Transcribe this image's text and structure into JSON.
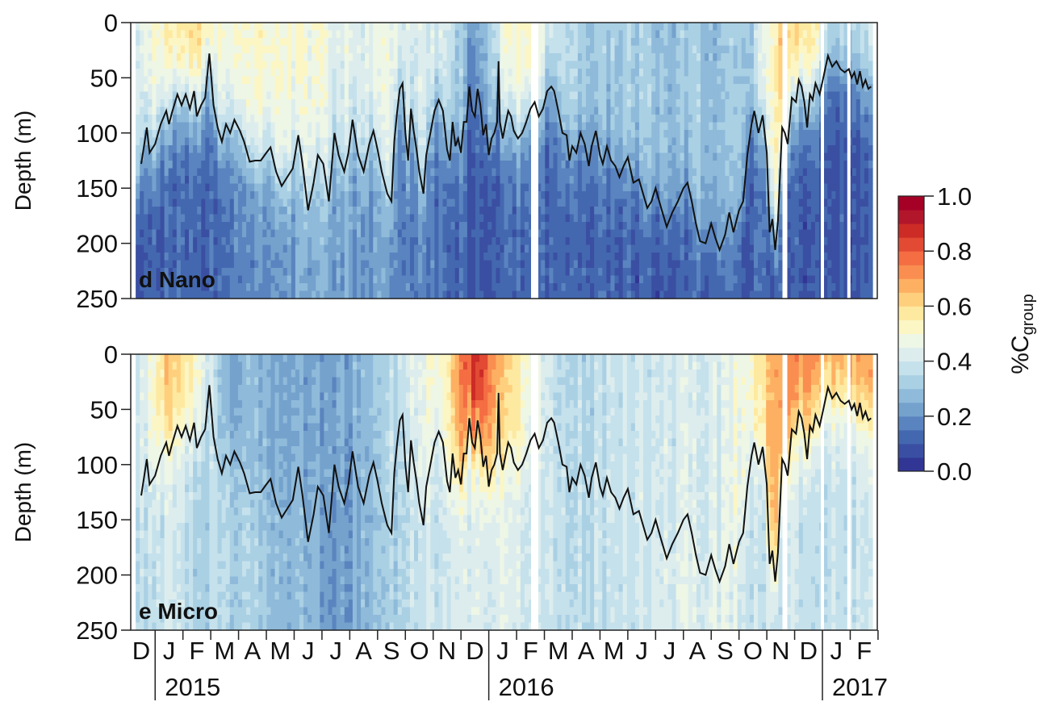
{
  "chart_data": [
    {
      "type": "heatmap",
      "panel_label": "d Nano",
      "ylabel": "Depth (m)",
      "ylim": [
        250,
        0
      ],
      "y_ticks": [
        0,
        50,
        100,
        150,
        200,
        250
      ],
      "x_month_labels": [
        "D",
        "J",
        "F",
        "M",
        "A",
        "M",
        "J",
        "J",
        "A",
        "S",
        "O",
        "N",
        "D",
        "J",
        "F",
        "M",
        "A",
        "M",
        "J",
        "J",
        "A",
        "S",
        "O",
        "N",
        "D",
        "J",
        "F"
      ],
      "x_year_labels": [
        "2015",
        "2016",
        "2017"
      ],
      "value_range": [
        0,
        1
      ],
      "gaps_month_index": [
        14.15,
        23.15,
        24.5,
        25.45
      ],
      "mixed_layer_depth_line": [
        [
          0.0,
          128
        ],
        [
          0.1,
          112
        ],
        [
          0.2,
          95
        ],
        [
          0.3,
          118
        ],
        [
          0.5,
          110
        ],
        [
          0.7,
          92
        ],
        [
          0.9,
          80
        ],
        [
          1.0,
          92
        ],
        [
          1.1,
          82
        ],
        [
          1.3,
          65
        ],
        [
          1.45,
          75
        ],
        [
          1.6,
          65
        ],
        [
          1.75,
          78
        ],
        [
          1.9,
          62
        ],
        [
          2.0,
          85
        ],
        [
          2.15,
          75
        ],
        [
          2.3,
          68
        ],
        [
          2.45,
          28
        ],
        [
          2.6,
          75
        ],
        [
          2.75,
          95
        ],
        [
          2.9,
          108
        ],
        [
          3.05,
          92
        ],
        [
          3.2,
          100
        ],
        [
          3.35,
          88
        ],
        [
          3.55,
          98
        ],
        [
          3.7,
          108
        ],
        [
          3.9,
          126
        ],
        [
          4.1,
          125
        ],
        [
          4.3,
          125
        ],
        [
          4.5,
          118
        ],
        [
          4.65,
          113
        ],
        [
          4.85,
          135
        ],
        [
          5.05,
          148
        ],
        [
          5.25,
          140
        ],
        [
          5.45,
          132
        ],
        [
          5.65,
          102
        ],
        [
          5.8,
          128
        ],
        [
          6.0,
          170
        ],
        [
          6.2,
          145
        ],
        [
          6.35,
          120
        ],
        [
          6.55,
          128
        ],
        [
          6.75,
          162
        ],
        [
          6.95,
          100
        ],
        [
          7.1,
          120
        ],
        [
          7.3,
          135
        ],
        [
          7.45,
          118
        ],
        [
          7.6,
          88
        ],
        [
          7.8,
          120
        ],
        [
          8.0,
          135
        ],
        [
          8.2,
          110
        ],
        [
          8.35,
          98
        ],
        [
          8.5,
          115
        ],
        [
          8.65,
          135
        ],
        [
          8.85,
          155
        ],
        [
          9.0,
          162
        ],
        [
          9.1,
          108
        ],
        [
          9.2,
          82
        ],
        [
          9.3,
          60
        ],
        [
          9.4,
          55
        ],
        [
          9.5,
          100
        ],
        [
          9.6,
          125
        ],
        [
          9.7,
          78
        ],
        [
          9.8,
          98
        ],
        [
          9.9,
          115
        ],
        [
          10.0,
          135
        ],
        [
          10.15,
          155
        ],
        [
          10.25,
          120
        ],
        [
          10.4,
          100
        ],
        [
          10.55,
          80
        ],
        [
          10.7,
          70
        ],
        [
          10.85,
          80
        ],
        [
          11.0,
          115
        ],
        [
          11.1,
          125
        ],
        [
          11.2,
          90
        ],
        [
          11.3,
          112
        ],
        [
          11.4,
          105
        ],
        [
          11.5,
          118
        ],
        [
          11.6,
          90
        ],
        [
          11.7,
          90
        ],
        [
          11.8,
          58
        ],
        [
          11.9,
          80
        ],
        [
          12.0,
          85
        ],
        [
          12.1,
          60
        ],
        [
          12.2,
          75
        ],
        [
          12.3,
          102
        ],
        [
          12.4,
          92
        ],
        [
          12.5,
          120
        ],
        [
          12.6,
          105
        ],
        [
          12.7,
          100
        ],
        [
          12.8,
          90
        ],
        [
          12.85,
          35
        ],
        [
          12.9,
          90
        ],
        [
          13.0,
          105
        ],
        [
          13.1,
          92
        ],
        [
          13.2,
          80
        ],
        [
          13.3,
          85
        ],
        [
          13.4,
          98
        ],
        [
          13.55,
          105
        ],
        [
          13.7,
          100
        ],
        [
          13.85,
          90
        ],
        [
          14.0,
          78
        ],
        [
          14.15,
          72
        ],
        [
          14.3,
          85
        ],
        [
          14.45,
          78
        ],
        [
          14.6,
          62
        ],
        [
          14.75,
          58
        ],
        [
          14.85,
          62
        ],
        [
          15.0,
          80
        ],
        [
          15.15,
          100
        ],
        [
          15.3,
          102
        ],
        [
          15.4,
          125
        ],
        [
          15.5,
          112
        ],
        [
          15.65,
          118
        ],
        [
          15.8,
          100
        ],
        [
          15.95,
          110
        ],
        [
          16.1,
          130
        ],
        [
          16.2,
          112
        ],
        [
          16.35,
          98
        ],
        [
          16.5,
          120
        ],
        [
          16.6,
          128
        ],
        [
          16.75,
          112
        ],
        [
          16.9,
          125
        ],
        [
          17.05,
          130
        ],
        [
          17.2,
          140
        ],
        [
          17.35,
          130
        ],
        [
          17.5,
          122
        ],
        [
          17.7,
          145
        ],
        [
          17.9,
          142
        ],
        [
          18.05,
          155
        ],
        [
          18.2,
          168
        ],
        [
          18.35,
          162
        ],
        [
          18.5,
          150
        ],
        [
          18.7,
          168
        ],
        [
          18.9,
          185
        ],
        [
          19.1,
          172
        ],
        [
          19.3,
          162
        ],
        [
          19.5,
          150
        ],
        [
          19.65,
          145
        ],
        [
          19.8,
          162
        ],
        [
          19.95,
          182
        ],
        [
          20.1,
          198
        ],
        [
          20.3,
          200
        ],
        [
          20.5,
          182
        ],
        [
          20.65,
          195
        ],
        [
          20.8,
          206
        ],
        [
          21.0,
          192
        ],
        [
          21.15,
          172
        ],
        [
          21.3,
          190
        ],
        [
          21.5,
          170
        ],
        [
          21.65,
          162
        ],
        [
          21.8,
          120
        ],
        [
          21.95,
          92
        ],
        [
          22.05,
          80
        ],
        [
          22.2,
          100
        ],
        [
          22.35,
          84
        ],
        [
          22.5,
          118
        ],
        [
          22.6,
          190
        ],
        [
          22.7,
          178
        ],
        [
          22.8,
          206
        ],
        [
          22.9,
          180
        ],
        [
          23.05,
          95
        ],
        [
          23.15,
          100
        ],
        [
          23.25,
          110
        ],
        [
          23.4,
          68
        ],
        [
          23.55,
          72
        ],
        [
          23.65,
          52
        ],
        [
          23.75,
          58
        ],
        [
          23.85,
          72
        ],
        [
          23.95,
          95
        ],
        [
          24.05,
          65
        ],
        [
          24.15,
          70
        ],
        [
          24.25,
          55
        ],
        [
          24.4,
          65
        ],
        [
          24.55,
          48
        ],
        [
          24.7,
          30
        ],
        [
          24.85,
          40
        ],
        [
          25.0,
          35
        ],
        [
          25.15,
          42
        ],
        [
          25.3,
          45
        ],
        [
          25.45,
          42
        ],
        [
          25.55,
          50
        ],
        [
          25.65,
          45
        ],
        [
          25.75,
          56
        ],
        [
          25.85,
          44
        ],
        [
          25.95,
          58
        ],
        [
          26.05,
          52
        ],
        [
          26.15,
          60
        ],
        [
          26.25,
          58
        ]
      ]
    },
    {
      "type": "heatmap",
      "panel_label": "e Micro",
      "ylabel": "Depth (m)",
      "ylim": [
        250,
        0
      ],
      "y_ticks": [
        0,
        50,
        100,
        150,
        200,
        250
      ],
      "x_month_labels": [
        "D",
        "J",
        "F",
        "M",
        "A",
        "M",
        "J",
        "J",
        "A",
        "S",
        "O",
        "N",
        "D",
        "J",
        "F",
        "M",
        "A",
        "M",
        "J",
        "J",
        "A",
        "S",
        "O",
        "N",
        "D",
        "J",
        "F"
      ],
      "x_year_labels": [
        "2015",
        "2016",
        "2017"
      ],
      "value_range": [
        0,
        1
      ],
      "gaps_month_index": [
        14.15,
        23.15,
        24.5,
        25.45
      ],
      "mixed_layer_depth_line": "same as panel d"
    }
  ],
  "colorbar": {
    "label_main": "%C",
    "label_sub": "group",
    "ticks": [
      "0.0",
      "0.2",
      "0.4",
      "0.6",
      "0.8",
      "1.0"
    ],
    "tick_values": [
      0,
      0.2,
      0.4,
      0.6,
      0.8,
      1.0
    ],
    "colors": [
      "#313695",
      "#3a4fa2",
      "#4468b0",
      "#5a84bf",
      "#74a2cd",
      "#8fbada",
      "#aad0e4",
      "#c5e1ec",
      "#ddedee",
      "#eef6e6",
      "#fbf6c4",
      "#fee9a0",
      "#fed07e",
      "#fdb062",
      "#f98e50",
      "#f46d43",
      "#e24a33",
      "#cc2b26",
      "#b2162b",
      "#a50026"
    ]
  }
}
